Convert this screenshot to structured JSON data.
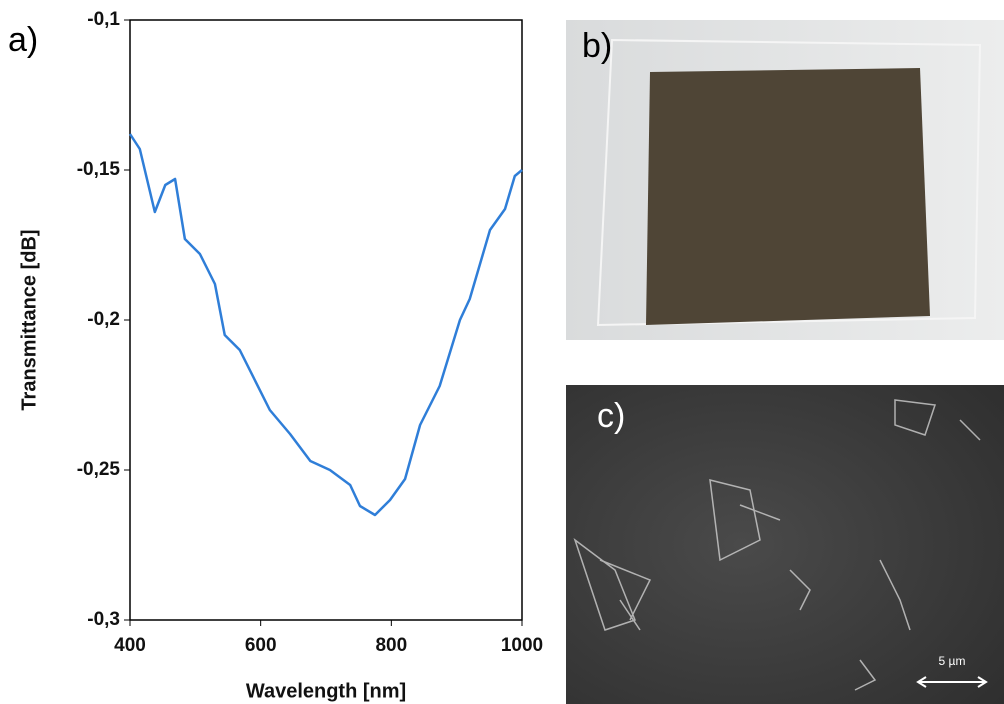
{
  "chart_data": {
    "type": "line",
    "panel_label": "a)",
    "x_label": "Wavelength [nm]",
    "y_label": "Transmittance [dB]",
    "x": [
      400,
      415,
      438,
      454,
      469,
      484,
      507,
      530,
      545,
      568,
      591,
      614,
      645,
      676,
      706,
      737,
      752,
      775,
      798,
      821,
      844,
      874,
      905,
      920,
      951,
      974,
      989,
      1000
    ],
    "series": [
      {
        "color": "#2f7ed8",
        "values": [
          -0.138,
          -0.143,
          -0.164,
          -0.155,
          -0.153,
          -0.173,
          -0.178,
          -0.188,
          -0.205,
          -0.21,
          -0.22,
          -0.23,
          -0.238,
          -0.247,
          -0.25,
          -0.255,
          -0.262,
          -0.265,
          -0.26,
          -0.253,
          -0.235,
          -0.222,
          -0.2,
          -0.193,
          -0.17,
          -0.163,
          -0.152,
          -0.15
        ]
      }
    ],
    "xlim": [
      400,
      1000
    ],
    "xticks": [
      400,
      600,
      800,
      1000
    ],
    "ylim": [
      -0.3,
      -0.1
    ],
    "yticks": [
      {
        "value": -0.3,
        "label": "-0,3"
      },
      {
        "value": -0.25,
        "label": "-0,25"
      },
      {
        "value": -0.2,
        "label": "-0,2"
      },
      {
        "value": -0.15,
        "label": "-0,15"
      },
      {
        "value": -0.1,
        "label": "-0,1"
      }
    ]
  },
  "photos": [
    {
      "label": "b)"
    },
    {
      "label": "c)",
      "scale_bar": "5 µm"
    }
  ]
}
